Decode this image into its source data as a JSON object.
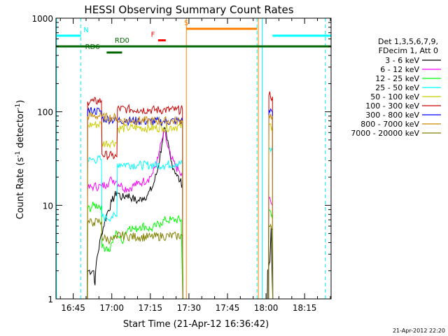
{
  "chart_data": {
    "type": "line",
    "title": "HESSI Observing Summary Count Rates",
    "xlabel": "Start Time (21-Apr-12 16:36:42)",
    "ylabel_main": "Count Rate (s",
    "ylabel_sup1": "-1",
    "ylabel_mid": " detector",
    "ylabel_sup2": "-1",
    "ylabel_end": ")",
    "footer_timestamp": "21-Apr-2012 22:20",
    "y_scale": "log",
    "ylim": [
      1,
      1000
    ],
    "xlim_minutes": [
      -6.7,
      100.3
    ],
    "x_ticks": [
      {
        "label": "16:45",
        "m": 0
      },
      {
        "label": "17:00",
        "m": 15
      },
      {
        "label": "17:15",
        "m": 30
      },
      {
        "label": "17:30",
        "m": 45
      },
      {
        "label": "17:45",
        "m": 60
      },
      {
        "label": "18:00",
        "m": 75
      },
      {
        "label": "18:15",
        "m": 90
      }
    ],
    "y_ticks": [
      {
        "label": "1",
        "v": 1
      },
      {
        "label": "10",
        "v": 10
      },
      {
        "label": "100",
        "v": 100
      },
      {
        "label": "1000",
        "v": 1000
      }
    ],
    "legend_header": [
      "Det 1,3,5,6,7,9,",
      "FDecim 1, Att 0"
    ],
    "series": [
      {
        "name": "3 - 6 keV",
        "color": "#000000",
        "points": [
          [
            5.5,
            1
          ],
          [
            5.6,
            2
          ],
          [
            8,
            2
          ],
          [
            8.5,
            1.4
          ],
          [
            9,
            2.5
          ],
          [
            11,
            5
          ],
          [
            13,
            8
          ],
          [
            15,
            11
          ],
          [
            17,
            14
          ],
          [
            19,
            12
          ],
          [
            21,
            13
          ],
          [
            23,
            12
          ],
          [
            25,
            11
          ],
          [
            27,
            12
          ],
          [
            29,
            13
          ],
          [
            31,
            16
          ],
          [
            33,
            25
          ],
          [
            34.5,
            45
          ],
          [
            35.5,
            68
          ],
          [
            36.5,
            50
          ],
          [
            38,
            30
          ],
          [
            40,
            22
          ],
          [
            41.5,
            18
          ],
          [
            42.5,
            17
          ],
          [
            42.6,
            1
          ]
        ],
        "pass2": [
          [
            75.5,
            1
          ],
          [
            75.6,
            2
          ],
          [
            76.5,
            2.5
          ],
          [
            77,
            6
          ],
          [
            77.6,
            1
          ]
        ]
      },
      {
        "name": "6 - 12 keV",
        "color": "#ff00ff",
        "points": [
          [
            5.5,
            1
          ],
          [
            5.6,
            15
          ],
          [
            8,
            16
          ],
          [
            11,
            16
          ],
          [
            13,
            17
          ],
          [
            15,
            19
          ],
          [
            17,
            18
          ],
          [
            19,
            16
          ],
          [
            21,
            15
          ],
          [
            23,
            16
          ],
          [
            25,
            17
          ],
          [
            27,
            18
          ],
          [
            29,
            19
          ],
          [
            31,
            22
          ],
          [
            33,
            32
          ],
          [
            34.5,
            50
          ],
          [
            35.5,
            62
          ],
          [
            36.5,
            45
          ],
          [
            38,
            32
          ],
          [
            40,
            26
          ],
          [
            41.5,
            22
          ],
          [
            42.5,
            20
          ],
          [
            42.6,
            1
          ]
        ],
        "pass2": [
          [
            76,
            1
          ],
          [
            76.1,
            12
          ],
          [
            77.5,
            10
          ],
          [
            77.6,
            1
          ]
        ]
      },
      {
        "name": "12 - 25 keV",
        "color": "#00ff00",
        "points": [
          [
            5.5,
            1
          ],
          [
            5.6,
            9
          ],
          [
            8,
            10
          ],
          [
            11,
            10
          ],
          [
            11.2,
            3.5
          ],
          [
            13,
            3.6
          ],
          [
            14,
            3.2
          ],
          [
            15,
            4
          ],
          [
            17,
            5.2
          ],
          [
            19,
            4
          ],
          [
            20,
            5
          ],
          [
            22,
            6
          ],
          [
            24,
            5.5
          ],
          [
            26,
            6
          ],
          [
            28,
            6
          ],
          [
            30,
            5.5
          ],
          [
            32,
            6
          ],
          [
            34,
            6.5
          ],
          [
            36,
            7
          ],
          [
            38,
            7
          ],
          [
            40,
            7
          ],
          [
            42,
            7
          ],
          [
            42.6,
            1
          ]
        ],
        "pass2": [
          [
            76,
            1
          ],
          [
            76.1,
            9
          ],
          [
            77.5,
            8
          ],
          [
            77.6,
            1
          ]
        ]
      },
      {
        "name": "25 - 50 keV",
        "color": "#00ffff",
        "points": [
          [
            5.5,
            1
          ],
          [
            5.6,
            30
          ],
          [
            8,
            31
          ],
          [
            11,
            31
          ],
          [
            11.2,
            7.5
          ],
          [
            13,
            7.3
          ],
          [
            15,
            7.6
          ],
          [
            17,
            7.6
          ],
          [
            17.2,
            28
          ],
          [
            21,
            27.5
          ],
          [
            25,
            27
          ],
          [
            30,
            27
          ],
          [
            35,
            27
          ],
          [
            40,
            28
          ],
          [
            42.5,
            28
          ],
          [
            42.6,
            1
          ]
        ],
        "pass2": [
          [
            76,
            1
          ],
          [
            76.1,
            40
          ],
          [
            77.5,
            38
          ],
          [
            77.6,
            1
          ]
        ]
      },
      {
        "name": "50 - 100 keV",
        "color": "#cccc00",
        "points": [
          [
            5.5,
            1
          ],
          [
            5.6,
            72
          ],
          [
            8,
            73
          ],
          [
            11,
            74
          ],
          [
            11.2,
            46
          ],
          [
            15,
            47
          ],
          [
            17,
            47
          ],
          [
            17.2,
            66
          ],
          [
            21,
            67
          ],
          [
            25,
            68
          ],
          [
            30,
            67
          ],
          [
            35,
            68
          ],
          [
            40,
            69
          ],
          [
            42.5,
            70
          ],
          [
            42.6,
            1
          ]
        ],
        "pass2": [
          [
            76,
            1
          ],
          [
            76.1,
            72
          ],
          [
            77.5,
            70
          ],
          [
            77.6,
            1
          ]
        ]
      },
      {
        "name": "100 - 300 keV",
        "color": "#cc0000",
        "points": [
          [
            5.5,
            1
          ],
          [
            5.6,
            128
          ],
          [
            8,
            129
          ],
          [
            11,
            131
          ],
          [
            11.2,
            35
          ],
          [
            15,
            34
          ],
          [
            17,
            33
          ],
          [
            17.2,
            108
          ],
          [
            21,
            107
          ],
          [
            25,
            106
          ],
          [
            30,
            105
          ],
          [
            35,
            105
          ],
          [
            40,
            105
          ],
          [
            42.5,
            106
          ],
          [
            42.6,
            1
          ]
        ],
        "pass2": [
          [
            76,
            1
          ],
          [
            76.1,
            150
          ],
          [
            77.5,
            145
          ],
          [
            77.6,
            1
          ]
        ]
      },
      {
        "name": "300 - 800 keV",
        "color": "#0000ff",
        "points": [
          [
            5.5,
            1
          ],
          [
            5.6,
            102
          ],
          [
            8,
            103
          ],
          [
            11,
            101
          ],
          [
            11.2,
            85
          ],
          [
            15,
            83
          ],
          [
            17,
            81
          ],
          [
            17.2,
            82
          ],
          [
            21,
            81
          ],
          [
            25,
            80
          ],
          [
            30,
            79
          ],
          [
            35,
            79
          ],
          [
            40,
            80
          ],
          [
            42.5,
            80
          ],
          [
            42.6,
            1
          ]
        ],
        "pass2": [
          [
            76,
            1
          ],
          [
            76.1,
            105
          ],
          [
            77.5,
            100
          ],
          [
            77.6,
            1
          ]
        ]
      },
      {
        "name": "800 - 7000 keV",
        "color": "#cc8800",
        "points": [
          [
            5.5,
            1
          ],
          [
            5.6,
            90
          ],
          [
            8,
            90
          ],
          [
            11,
            91
          ],
          [
            11.2,
            88
          ],
          [
            15,
            87
          ],
          [
            17,
            87
          ],
          [
            17.2,
            81
          ],
          [
            21,
            81
          ],
          [
            25,
            81
          ],
          [
            30,
            80
          ],
          [
            35,
            80
          ],
          [
            40,
            80
          ],
          [
            42.5,
            81
          ],
          [
            42.6,
            1
          ]
        ],
        "pass2": [
          [
            76,
            1
          ],
          [
            76.1,
            92
          ],
          [
            77.5,
            90
          ],
          [
            77.6,
            1
          ]
        ]
      },
      {
        "name": "7000 - 20000 keV",
        "color": "#808000",
        "points": [
          [
            5.5,
            1
          ],
          [
            5.6,
            6.5
          ],
          [
            8,
            6.6
          ],
          [
            11,
            6.7
          ],
          [
            11.2,
            4.5
          ],
          [
            15,
            4.3
          ],
          [
            17,
            4.4
          ],
          [
            17.2,
            4.8
          ],
          [
            21,
            4.7
          ],
          [
            25,
            4.6
          ],
          [
            30,
            4.6
          ],
          [
            35,
            4.7
          ],
          [
            40,
            4.7
          ],
          [
            42.5,
            4.8
          ],
          [
            42.6,
            1
          ]
        ],
        "pass2": [
          [
            76,
            1
          ],
          [
            76.1,
            6
          ],
          [
            77.5,
            5.5
          ],
          [
            77.6,
            1
          ]
        ]
      }
    ],
    "flag_bars": [
      {
        "label": "N",
        "color": "#00ffff",
        "value": 650,
        "segments": [
          [
            -6.7,
            3
          ],
          [
            76,
            76
          ],
          [
            77.5,
            100.3
          ]
        ],
        "label_m": 5
      },
      {
        "label": "S",
        "color": "#ff8000",
        "value": 770,
        "segments": [
          [
            44,
            71.5
          ]
        ],
        "label_m": 44
      },
      {
        "label": "F",
        "color": "#ff0000",
        "value": 580,
        "segments": [
          [
            33,
            36
          ]
        ],
        "label_m": 31
      },
      {
        "label": "RD0",
        "color": "#006600",
        "value": 500,
        "segments": [
          [
            -6.7,
            100.3
          ]
        ],
        "label_m": 19
      },
      {
        "label": "RD6",
        "color": "#006600",
        "value": 430,
        "segments": [
          [
            13,
            19
          ]
        ],
        "label_m": 7.5
      }
    ],
    "vertical_lines": [
      {
        "m": -6.5,
        "color": "#00ffff",
        "style": "solid"
      },
      {
        "m": 3,
        "color": "#00ffff",
        "style": "dashed"
      },
      {
        "m": 44,
        "color": "#ff8000",
        "style": "solid"
      },
      {
        "m": 71.5,
        "color": "#00ffff",
        "style": "dashed"
      },
      {
        "m": 72,
        "color": "#ff8000",
        "style": "solid"
      },
      {
        "m": 73.5,
        "color": "#00ffff",
        "style": "solid"
      },
      {
        "m": 98,
        "color": "#00ffff",
        "style": "dashed"
      }
    ]
  }
}
